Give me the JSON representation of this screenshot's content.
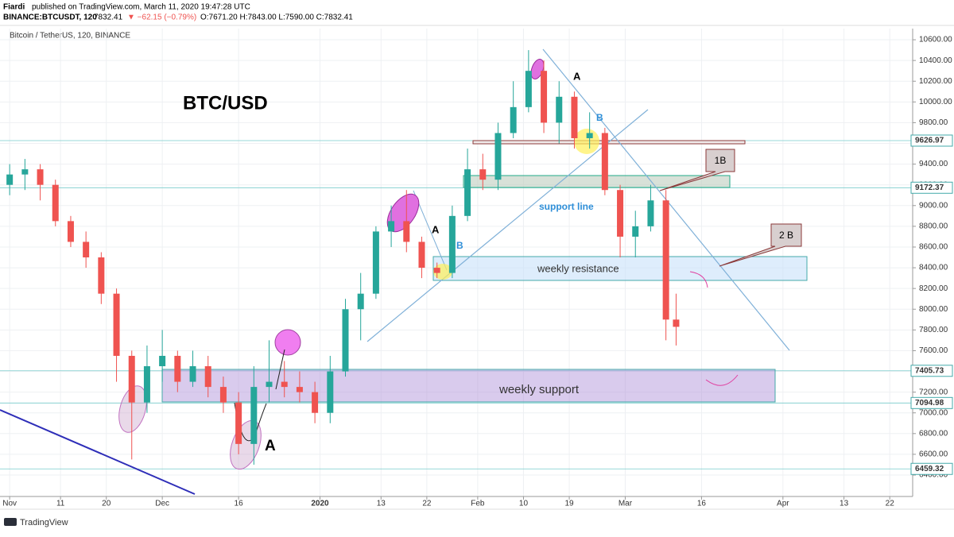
{
  "header": {
    "author": "Fiardi",
    "published": "published on TradingView.com, March 11, 2020 19:47:28 UTC",
    "symbol": "BINANCE:BTCUSDT, 120",
    "last": "7832.41",
    "change": "▼ −62.15 (−0.79%)",
    "ohlc": "O:7671.20 H:7843.00 L:7590.00 C:7832.41"
  },
  "chart_data": {
    "type": "candlestick",
    "title": "Bitcoin / TetherUS, 120, BINANCE",
    "x": [
      0,
      3,
      6,
      9,
      12,
      15,
      18,
      21,
      24,
      27,
      30,
      33,
      36,
      39,
      42,
      45,
      48,
      51,
      54,
      57,
      60,
      63,
      66,
      69,
      72,
      75,
      78,
      81,
      84,
      87,
      90,
      93,
      96,
      99,
      102,
      105,
      108,
      111,
      114,
      117,
      120,
      123,
      126,
      129,
      131
    ],
    "open": [
      9200,
      9300,
      9350,
      9200,
      8850,
      8650,
      8500,
      8150,
      7550,
      7100,
      7450,
      7550,
      7300,
      7450,
      7250,
      7100,
      6700,
      7250,
      7300,
      7250,
      7200,
      7000,
      7400,
      8000,
      8150,
      8750,
      8850,
      8650,
      8400,
      8350,
      8900,
      9350,
      9250,
      9700,
      9950,
      10300,
      9800,
      10050,
      9650,
      9700,
      9150,
      8700,
      8800,
      9050,
      7900
    ],
    "high": [
      9400,
      9450,
      9400,
      9250,
      8900,
      8750,
      8550,
      8200,
      7600,
      7650,
      7800,
      7600,
      7600,
      7550,
      7350,
      7200,
      7450,
      7700,
      7500,
      7400,
      7300,
      7550,
      8100,
      8350,
      8800,
      9000,
      9150,
      8700,
      8450,
      9000,
      9550,
      9500,
      9800,
      10200,
      10500,
      10400,
      10200,
      10100,
      9900,
      9750,
      9200,
      8950,
      9200,
      9150,
      8150
    ],
    "low": [
      9100,
      9150,
      9050,
      8800,
      8600,
      8400,
      8050,
      7300,
      6550,
      7000,
      7300,
      7200,
      7250,
      7150,
      7000,
      6600,
      6500,
      7100,
      7150,
      7100,
      6900,
      6900,
      7350,
      7700,
      8100,
      8600,
      8550,
      8300,
      8300,
      8300,
      8850,
      9150,
      9150,
      9650,
      9900,
      9700,
      9600,
      9550,
      9550,
      9100,
      8500,
      8500,
      8750,
      7700,
      7650
    ],
    "close": [
      9300,
      9350,
      9200,
      8850,
      8650,
      8500,
      8150,
      7550,
      7100,
      7450,
      7550,
      7300,
      7450,
      7250,
      7100,
      6700,
      7250,
      7300,
      7250,
      7200,
      7000,
      7400,
      8000,
      8150,
      8750,
      8850,
      8650,
      8400,
      8350,
      8900,
      9350,
      9250,
      9700,
      9950,
      10300,
      9800,
      10050,
      9650,
      9700,
      9150,
      8700,
      8800,
      9050,
      7900,
      7830
    ],
    "up_color": "#26a69a",
    "down_color": "#ef5350",
    "xlim": [
      -1.9,
      177.5
    ],
    "xticks": [
      {
        "value": 0,
        "label": "Nov"
      },
      {
        "value": 10,
        "label": "11"
      },
      {
        "value": 19,
        "label": "20"
      },
      {
        "value": 30,
        "label": "Dec"
      },
      {
        "value": 45,
        "label": "16"
      },
      {
        "value": 61,
        "label": "2020"
      },
      {
        "value": 73,
        "label": "13"
      },
      {
        "value": 82,
        "label": "22"
      },
      {
        "value": 92,
        "label": "Feb"
      },
      {
        "value": 101,
        "label": "10"
      },
      {
        "value": 110,
        "label": "19"
      },
      {
        "value": 121,
        "label": "Mar"
      },
      {
        "value": 136,
        "label": "16"
      },
      {
        "value": 152,
        "label": "Apr"
      },
      {
        "value": 164,
        "label": "13"
      },
      {
        "value": 173,
        "label": "22"
      }
    ],
    "ylim": [
      6193,
      10677
    ],
    "yticks": [
      {
        "value": 6400,
        "label": "6400.00"
      },
      {
        "value": 6600,
        "label": "6600.00"
      },
      {
        "value": 6800,
        "label": "6800.00"
      },
      {
        "value": 7000,
        "label": "7000.00"
      },
      {
        "value": 7200,
        "label": "7200.00"
      },
      {
        "value": 7400,
        "label": "7400.00"
      },
      {
        "value": 7600,
        "label": "7600.00"
      },
      {
        "value": 7800,
        "label": "7800.00"
      },
      {
        "value": 8000,
        "label": "8000.00"
      },
      {
        "value": 8200,
        "label": "8200.00"
      },
      {
        "value": 8400,
        "label": "8400.00"
      },
      {
        "value": 8600,
        "label": "8600.00"
      },
      {
        "value": 8800,
        "label": "8800.00"
      },
      {
        "value": 9000,
        "label": "9000.00"
      },
      {
        "value": 9200,
        "label": "9200.00"
      },
      {
        "value": 9400,
        "label": "9400.00"
      },
      {
        "value": 9600,
        "label": "9600.00"
      },
      {
        "value": 9800,
        "label": "9800.00"
      },
      {
        "value": 10000,
        "label": "10000.00"
      },
      {
        "value": 10200,
        "label": "10200.00"
      },
      {
        "value": 10400,
        "label": "10400.00"
      },
      {
        "value": 10600,
        "label": "10600.00"
      }
    ],
    "grid": true,
    "price_lines": [
      9626.97,
      9172.37,
      7405.73,
      7094.98,
      6459.32
    ],
    "annotations": {
      "symbol": "BTC/USD",
      "support_line": "support line",
      "resistance": "weekly resistance",
      "support": "weekly support",
      "a1": "A",
      "a2": "A",
      "a3": "A",
      "b1": "B",
      "b2": "B",
      "c1": "1B",
      "c2": "2 B"
    }
  },
  "footer": {
    "brand": "TradingView"
  }
}
